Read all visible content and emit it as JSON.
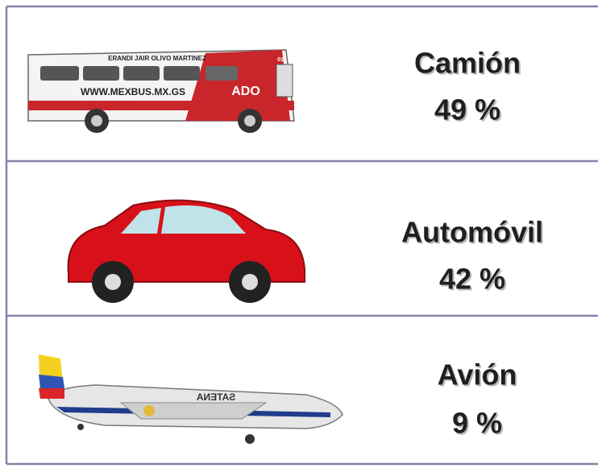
{
  "rows": [
    {
      "label": "Camión",
      "value": "49 %",
      "image_texts": [
        "ERANDI JAIR OLIVO MARTINEZ",
        "WWW.MEXBUS.MX.GS",
        "01",
        "ADO"
      ]
    },
    {
      "label": "Automóvil",
      "value": "42 %"
    },
    {
      "label": "Avión",
      "value": "9 %",
      "image_texts": [
        "SATENA"
      ]
    }
  ]
}
